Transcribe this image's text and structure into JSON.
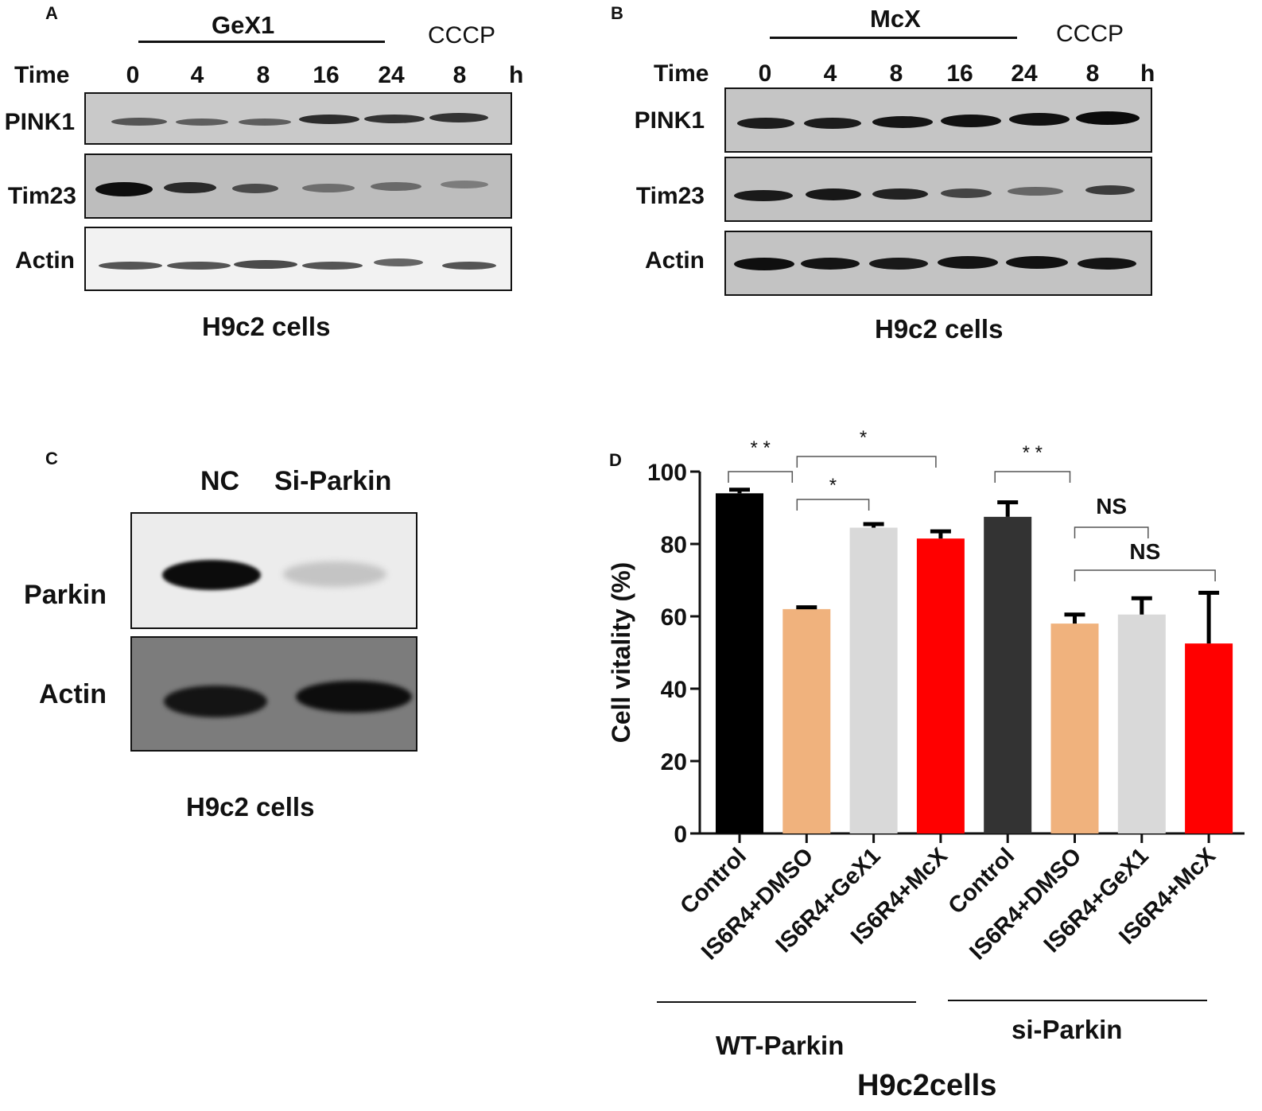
{
  "panelA": {
    "letter": "A",
    "treatment": "GeX1",
    "control_treatment": "CCCP",
    "time_label": "Time",
    "unit": "h",
    "lanes": [
      "0",
      "4",
      "8",
      "16",
      "24",
      "8"
    ],
    "rows": [
      "PINK1",
      "Tim23",
      "Actin"
    ],
    "caption": "H9c2 cells"
  },
  "panelB": {
    "letter": "B",
    "treatment": "McX",
    "control_treatment": "CCCP",
    "time_label": "Time",
    "unit": "h",
    "lanes": [
      "0",
      "4",
      "8",
      "16",
      "24",
      "8"
    ],
    "rows": [
      "PINK1",
      "Tim23",
      "Actin"
    ],
    "caption": "H9c2 cells"
  },
  "panelC": {
    "letter": "C",
    "lanes": [
      "NC",
      "Si-Parkin"
    ],
    "rows": [
      "Parkin",
      "Actin"
    ],
    "caption": "H9c2 cells"
  },
  "panelD": {
    "letter": "D",
    "group_labels": [
      "WT-Parkin",
      "si-Parkin"
    ],
    "footer": "H9c2cells"
  },
  "chart_data": {
    "type": "bar",
    "ylabel": "Cell vitality (%)",
    "ylim": [
      0,
      100
    ],
    "yticks": [
      0,
      20,
      40,
      60,
      80,
      100
    ],
    "categories": [
      "Control",
      "IS6R4+DMSO",
      "IS6R4+GeX1",
      "IS6R4+McX",
      "Control",
      "IS6R4+DMSO",
      "IS6R4+GeX1",
      "IS6R4+McX"
    ],
    "values": [
      94,
      62,
      84.5,
      81.5,
      87.5,
      58,
      60.5,
      52.5
    ],
    "errors": [
      1,
      0.5,
      1,
      2,
      4,
      2.5,
      4.5,
      14
    ],
    "colors": [
      "#000000",
      "#f0b27d",
      "#d9d9d9",
      "#ff0000",
      "#333333",
      "#f0b27d",
      "#d9d9d9",
      "#ff0000"
    ],
    "significance": [
      {
        "from": 0,
        "to": 1,
        "label": "* *"
      },
      {
        "from": 1,
        "to": 3,
        "label": "*"
      },
      {
        "from": 1,
        "to": 2,
        "label": "*"
      },
      {
        "from": 4,
        "to": 5,
        "label": "* *"
      },
      {
        "from": 5,
        "to": 6,
        "label": "NS"
      },
      {
        "from": 5,
        "to": 7,
        "label": "NS"
      }
    ]
  }
}
